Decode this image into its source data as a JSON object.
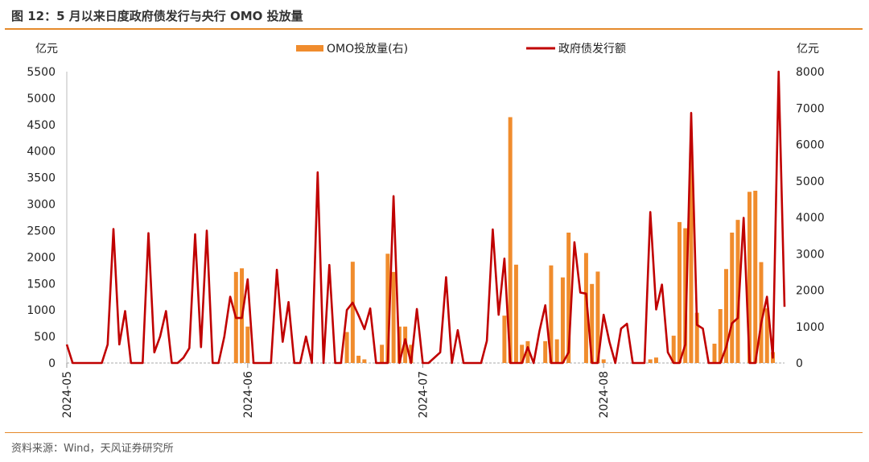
{
  "figure": {
    "title": "图 12：5 月以来日度政府债发行与央行 OMO 投放量",
    "source": "资料来源：Wind，天风证券研究所"
  },
  "colors": {
    "bar": "#f08c2d",
    "line": "#c00000",
    "accent_rule": "#e58a2b"
  },
  "chart_data": {
    "type": "bar+line",
    "x_ticks": [
      "2024-05",
      "2024-06",
      "2024-07",
      "2024-08"
    ],
    "x_tick_index": [
      0,
      31,
      61,
      92
    ],
    "x_range": [
      0,
      123
    ],
    "left_axis": {
      "unit": "亿元",
      "ylim": [
        0,
        5500
      ],
      "ticks": [
        0,
        500,
        1000,
        1500,
        2000,
        2500,
        3000,
        3500,
        4000,
        4500,
        5000,
        5500
      ]
    },
    "right_axis": {
      "unit": "亿元",
      "ylim": [
        0,
        8000
      ],
      "ticks": [
        0,
        1000,
        2000,
        3000,
        4000,
        5000,
        6000,
        7000,
        8000
      ]
    },
    "legend_position": "top-center",
    "series": [
      {
        "name": "OMO投放量(右)",
        "type": "bar",
        "axis": "right",
        "points": [
          [
            29,
            2500
          ],
          [
            30,
            2600
          ],
          [
            31,
            1000
          ],
          [
            48,
            850
          ],
          [
            49,
            2780
          ],
          [
            50,
            200
          ],
          [
            51,
            100
          ],
          [
            54,
            500
          ],
          [
            55,
            3000
          ],
          [
            56,
            2500
          ],
          [
            57,
            1000
          ],
          [
            58,
            1000
          ],
          [
            59,
            500
          ],
          [
            75,
            1300
          ],
          [
            76,
            6750
          ],
          [
            77,
            2700
          ],
          [
            78,
            500
          ],
          [
            79,
            600
          ],
          [
            82,
            600
          ],
          [
            83,
            2680
          ],
          [
            84,
            650
          ],
          [
            85,
            2350
          ],
          [
            86,
            3580
          ],
          [
            89,
            3020
          ],
          [
            90,
            2170
          ],
          [
            91,
            2510
          ],
          [
            92,
            100
          ],
          [
            100,
            100
          ],
          [
            101,
            150
          ],
          [
            104,
            750
          ],
          [
            105,
            3870
          ],
          [
            106,
            3700
          ],
          [
            107,
            5770
          ],
          [
            108,
            1380
          ],
          [
            111,
            530
          ],
          [
            112,
            1480
          ],
          [
            113,
            2580
          ],
          [
            114,
            3580
          ],
          [
            115,
            3930
          ],
          [
            117,
            4700
          ],
          [
            118,
            4730
          ],
          [
            119,
            2770
          ],
          [
            120,
            1500
          ],
          [
            121,
            300
          ]
        ]
      },
      {
        "name": "政府债发行额",
        "type": "line",
        "axis": "left",
        "points": [
          [
            0,
            350
          ],
          [
            1,
            0
          ],
          [
            2,
            0
          ],
          [
            3,
            0
          ],
          [
            4,
            0
          ],
          [
            5,
            0
          ],
          [
            6,
            0
          ],
          [
            7,
            350
          ],
          [
            8,
            2530
          ],
          [
            9,
            350
          ],
          [
            10,
            980
          ],
          [
            11,
            0
          ],
          [
            12,
            0
          ],
          [
            13,
            0
          ],
          [
            14,
            2450
          ],
          [
            15,
            200
          ],
          [
            16,
            500
          ],
          [
            17,
            980
          ],
          [
            18,
            0
          ],
          [
            19,
            0
          ],
          [
            20,
            100
          ],
          [
            21,
            280
          ],
          [
            22,
            2430
          ],
          [
            23,
            300
          ],
          [
            24,
            2500
          ],
          [
            25,
            0
          ],
          [
            26,
            0
          ],
          [
            27,
            500
          ],
          [
            28,
            1250
          ],
          [
            29,
            850
          ],
          [
            30,
            850
          ],
          [
            31,
            1580
          ],
          [
            32,
            0
          ],
          [
            33,
            0
          ],
          [
            34,
            0
          ],
          [
            35,
            0
          ],
          [
            36,
            1760
          ],
          [
            37,
            400
          ],
          [
            38,
            1150
          ],
          [
            39,
            0
          ],
          [
            40,
            0
          ],
          [
            41,
            500
          ],
          [
            42,
            0
          ],
          [
            43,
            3600
          ],
          [
            44,
            0
          ],
          [
            45,
            1850
          ],
          [
            46,
            0
          ],
          [
            47,
            0
          ],
          [
            48,
            1000
          ],
          [
            49,
            1140
          ],
          [
            50,
            900
          ],
          [
            51,
            640
          ],
          [
            52,
            1030
          ],
          [
            53,
            0
          ],
          [
            54,
            0
          ],
          [
            55,
            0
          ],
          [
            56,
            3150
          ],
          [
            57,
            0
          ],
          [
            58,
            450
          ],
          [
            59,
            0
          ],
          [
            60,
            1020
          ],
          [
            61,
            0
          ],
          [
            62,
            0
          ],
          [
            63,
            100
          ],
          [
            64,
            200
          ],
          [
            65,
            1620
          ],
          [
            66,
            0
          ],
          [
            67,
            620
          ],
          [
            68,
            0
          ],
          [
            69,
            0
          ],
          [
            70,
            0
          ],
          [
            71,
            0
          ],
          [
            72,
            420
          ],
          [
            73,
            2520
          ],
          [
            74,
            910
          ],
          [
            75,
            1970
          ],
          [
            76,
            0
          ],
          [
            77,
            0
          ],
          [
            78,
            0
          ],
          [
            79,
            300
          ],
          [
            80,
            0
          ],
          [
            81,
            600
          ],
          [
            82,
            1090
          ],
          [
            83,
            0
          ],
          [
            84,
            0
          ],
          [
            85,
            0
          ],
          [
            86,
            200
          ],
          [
            87,
            2280
          ],
          [
            88,
            1330
          ],
          [
            89,
            1310
          ],
          [
            90,
            0
          ],
          [
            91,
            0
          ],
          [
            92,
            910
          ],
          [
            93,
            400
          ],
          [
            94,
            0
          ],
          [
            95,
            650
          ],
          [
            96,
            740
          ],
          [
            97,
            0
          ],
          [
            98,
            0
          ],
          [
            99,
            0
          ],
          [
            100,
            2850
          ],
          [
            101,
            1010
          ],
          [
            102,
            1480
          ],
          [
            103,
            200
          ],
          [
            104,
            0
          ],
          [
            105,
            0
          ],
          [
            106,
            350
          ],
          [
            107,
            4720
          ],
          [
            108,
            720
          ],
          [
            109,
            650
          ],
          [
            110,
            0
          ],
          [
            111,
            0
          ],
          [
            112,
            0
          ],
          [
            113,
            300
          ],
          [
            114,
            750
          ],
          [
            115,
            850
          ],
          [
            116,
            2740
          ],
          [
            117,
            0
          ],
          [
            118,
            0
          ],
          [
            119,
            750
          ],
          [
            120,
            1250
          ],
          [
            121,
            100
          ],
          [
            122,
            5500
          ],
          [
            123,
            1060
          ]
        ]
      }
    ]
  }
}
